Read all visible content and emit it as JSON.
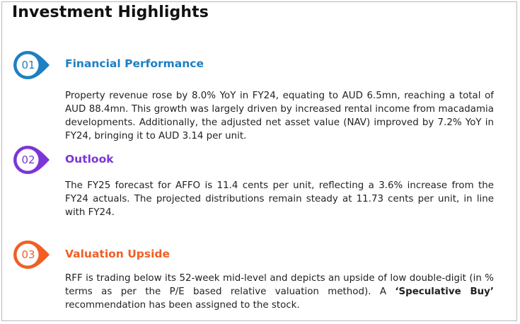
{
  "page_title": "Investment Highlights",
  "colors": {
    "blue": "#1e7fc3",
    "purple": "#7c35d8",
    "orange": "#f05f24"
  },
  "sections": [
    {
      "number": "01",
      "heading": "Financial Performance",
      "body": "Property revenue rose by 8.0% YoY in FY24, equating to AUD 6.5mn, reaching a total of AUD 88.4mn. This growth was largely driven by increased rental income from macadamia developments. Additionally, the adjusted net asset value (NAV) improved by 7.2% YoY in FY24, bringing it to AUD 3.14 per unit."
    },
    {
      "number": "02",
      "heading": "Outlook",
      "body": "The FY25 forecast for AFFO is 11.4 cents per unit, reflecting a 3.6% increase from the FY24 actuals. The projected distributions remain steady at 11.73 cents per unit, in line with FY24."
    },
    {
      "number": "03",
      "heading": "Valuation Upside",
      "body_part1": "RFF is trading below its 52-week mid-level and depicts an upside of low double-digit (in % terms as per the P/E based relative valuation method). A ",
      "body_bold": "‘Speculative Buy’",
      "body_part2": " recommendation has been assigned to the stock."
    }
  ]
}
